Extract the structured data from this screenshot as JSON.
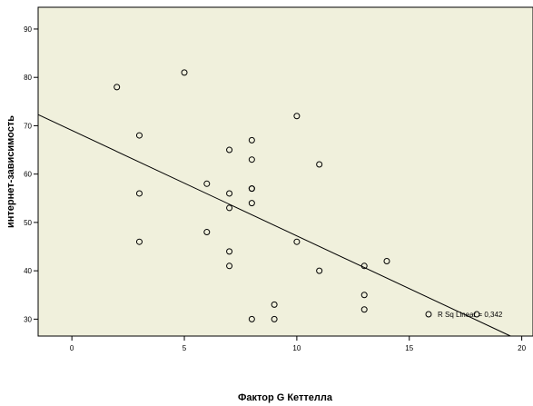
{
  "colors": {
    "plot_background": "#f0f0dc",
    "marker_stroke": "#000000",
    "fit_line": "#000000"
  },
  "chart_data": {
    "type": "scatter",
    "title": "",
    "xlabel": "Фактор G Кеттелла",
    "ylabel": "интернет-зависимость",
    "xlim": [
      -1.5,
      20.5
    ],
    "ylim": [
      26.5,
      94.5
    ],
    "x_ticks": [
      0,
      5,
      10,
      15,
      20
    ],
    "y_ticks": [
      30,
      40,
      50,
      60,
      70,
      80,
      90
    ],
    "grid": false,
    "marker": "hollow-circle",
    "points": [
      {
        "x": 2,
        "y": 78
      },
      {
        "x": 3,
        "y": 68
      },
      {
        "x": 3,
        "y": 56
      },
      {
        "x": 3,
        "y": 46
      },
      {
        "x": 5,
        "y": 81
      },
      {
        "x": 6,
        "y": 58
      },
      {
        "x": 6,
        "y": 48
      },
      {
        "x": 7,
        "y": 65
      },
      {
        "x": 7,
        "y": 56
      },
      {
        "x": 7,
        "y": 53
      },
      {
        "x": 7,
        "y": 44
      },
      {
        "x": 7,
        "y": 41
      },
      {
        "x": 8,
        "y": 67
      },
      {
        "x": 8,
        "y": 63
      },
      {
        "x": 8,
        "y": 57
      },
      {
        "x": 8,
        "y": 57
      },
      {
        "x": 8,
        "y": 54
      },
      {
        "x": 8,
        "y": 30
      },
      {
        "x": 9,
        "y": 33
      },
      {
        "x": 9,
        "y": 30
      },
      {
        "x": 10,
        "y": 72
      },
      {
        "x": 10,
        "y": 46
      },
      {
        "x": 11,
        "y": 62
      },
      {
        "x": 11,
        "y": 40
      },
      {
        "x": 13,
        "y": 41
      },
      {
        "x": 13,
        "y": 35
      },
      {
        "x": 13,
        "y": 32
      },
      {
        "x": 14,
        "y": 42
      },
      {
        "x": 18,
        "y": 31
      }
    ],
    "fit_line": {
      "type": "linear",
      "x": [
        -1.5,
        19.5
      ],
      "y": [
        72.3,
        26.5
      ]
    },
    "annotation": {
      "text": "R Sq Linear = 0,342",
      "placement": "right, near the fit line"
    },
    "legend": "none"
  }
}
